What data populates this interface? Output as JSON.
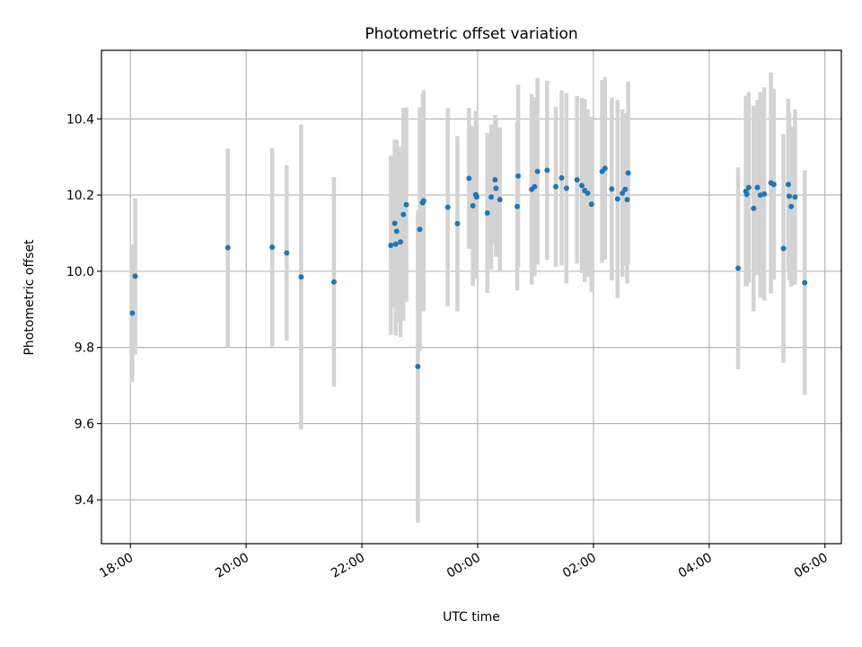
{
  "chart_data": {
    "type": "scatter",
    "title": "Photometric offset variation",
    "xlabel": "UTC time",
    "ylabel": "Photometric offset",
    "x_axis_type": "time",
    "x_range": [
      "17:30",
      "06:17"
    ],
    "ylim": [
      9.285,
      10.58
    ],
    "grid": true,
    "x_ticks": [
      "18:00",
      "20:00",
      "22:00",
      "00:00",
      "02:00",
      "04:00",
      "06:00"
    ],
    "y_ticks": [
      "9.4",
      "9.6",
      "9.8",
      "10.0",
      "10.2",
      "10.4"
    ],
    "marker_color": "#1f77b4",
    "errorbar_color": "#d3d3d3",
    "series": [
      {
        "points": [
          {
            "t": "18:02",
            "y": 9.89,
            "err": 0.18
          },
          {
            "t": "18:05",
            "y": 9.987,
            "err": 0.205
          },
          {
            "t": "19:41",
            "y": 10.062,
            "err": 0.26
          },
          {
            "t": "20:27",
            "y": 10.063,
            "err": 0.26
          },
          {
            "t": "20:42",
            "y": 10.048,
            "err": 0.23
          },
          {
            "t": "20:57",
            "y": 9.985,
            "err": 0.4
          },
          {
            "t": "21:31",
            "y": 9.972,
            "err": 0.275
          },
          {
            "t": "22:30",
            "y": 10.068,
            "err": 0.235
          },
          {
            "t": "22:34",
            "y": 10.126,
            "err": 0.22
          },
          {
            "t": "22:35",
            "y": 10.071,
            "err": 0.24
          },
          {
            "t": "22:36",
            "y": 10.105,
            "err": 0.24
          },
          {
            "t": "22:40",
            "y": 10.077,
            "err": 0.25
          },
          {
            "t": "22:43",
            "y": 10.149,
            "err": 0.28
          },
          {
            "t": "22:46",
            "y": 10.175,
            "err": 0.255
          },
          {
            "t": "22:58",
            "y": 9.75,
            "err": 0.41
          },
          {
            "t": "23:00",
            "y": 10.11,
            "err": 0.32
          },
          {
            "t": "23:03",
            "y": 10.18,
            "err": 0.285
          },
          {
            "t": "23:04",
            "y": 10.185,
            "err": 0.29
          },
          {
            "t": "23:29",
            "y": 10.168,
            "err": 0.26
          },
          {
            "t": "23:39",
            "y": 10.125,
            "err": 0.23
          },
          {
            "t": "23:51",
            "y": 10.244,
            "err": 0.185
          },
          {
            "t": "23:55",
            "y": 10.172,
            "err": 0.21
          },
          {
            "t": "23:58",
            "y": 10.201,
            "err": 0.22
          },
          {
            "t": "23:59",
            "y": 10.195,
            "err": 0.205
          },
          {
            "t": "00:10",
            "y": 10.153,
            "err": 0.21
          },
          {
            "t": "00:14",
            "y": 10.195,
            "err": 0.19
          },
          {
            "t": "00:18",
            "y": 10.24,
            "err": 0.17
          },
          {
            "t": "00:19",
            "y": 10.218,
            "err": 0.18
          },
          {
            "t": "00:23",
            "y": 10.188,
            "err": 0.19
          },
          {
            "t": "00:41",
            "y": 10.17,
            "err": 0.22
          },
          {
            "t": "00:42",
            "y": 10.25,
            "err": 0.24
          },
          {
            "t": "00:56",
            "y": 10.215,
            "err": 0.25
          },
          {
            "t": "00:59",
            "y": 10.222,
            "err": 0.235
          },
          {
            "t": "01:02",
            "y": 10.262,
            "err": 0.245
          },
          {
            "t": "01:12",
            "y": 10.265,
            "err": 0.235
          },
          {
            "t": "01:21",
            "y": 10.222,
            "err": 0.21
          },
          {
            "t": "01:27",
            "y": 10.245,
            "err": 0.23
          },
          {
            "t": "01:32",
            "y": 10.218,
            "err": 0.25
          },
          {
            "t": "01:43",
            "y": 10.24,
            "err": 0.22
          },
          {
            "t": "01:48",
            "y": 10.225,
            "err": 0.23
          },
          {
            "t": "01:51",
            "y": 10.212,
            "err": 0.24
          },
          {
            "t": "01:54",
            "y": 10.205,
            "err": 0.22
          },
          {
            "t": "01:58",
            "y": 10.176,
            "err": 0.23
          },
          {
            "t": "02:09",
            "y": 10.262,
            "err": 0.24
          },
          {
            "t": "02:12",
            "y": 10.27,
            "err": 0.24
          },
          {
            "t": "02:19",
            "y": 10.216,
            "err": 0.24
          },
          {
            "t": "02:25",
            "y": 10.19,
            "err": 0.26
          },
          {
            "t": "02:30",
            "y": 10.205,
            "err": 0.22
          },
          {
            "t": "02:33",
            "y": 10.215,
            "err": 0.2
          },
          {
            "t": "02:35",
            "y": 10.188,
            "err": 0.22
          },
          {
            "t": "02:36",
            "y": 10.258,
            "err": 0.24
          },
          {
            "t": "04:30",
            "y": 10.008,
            "err": 0.265
          },
          {
            "t": "04:38",
            "y": 10.21,
            "err": 0.25
          },
          {
            "t": "04:39",
            "y": 10.202,
            "err": 0.24
          },
          {
            "t": "04:41",
            "y": 10.22,
            "err": 0.25
          },
          {
            "t": "04:46",
            "y": 10.165,
            "err": 0.27
          },
          {
            "t": "04:50",
            "y": 10.22,
            "err": 0.23
          },
          {
            "t": "04:53",
            "y": 10.2,
            "err": 0.27
          },
          {
            "t": "04:57",
            "y": 10.203,
            "err": 0.28
          },
          {
            "t": "05:04",
            "y": 10.232,
            "err": 0.29
          },
          {
            "t": "05:07",
            "y": 10.228,
            "err": 0.25
          },
          {
            "t": "05:17",
            "y": 10.06,
            "err": 0.3
          },
          {
            "t": "05:22",
            "y": 10.228,
            "err": 0.225
          },
          {
            "t": "05:23",
            "y": 10.197,
            "err": 0.22
          },
          {
            "t": "05:25",
            "y": 10.17,
            "err": 0.21
          },
          {
            "t": "05:29",
            "y": 10.195,
            "err": 0.23
          },
          {
            "t": "05:39",
            "y": 9.97,
            "err": 0.295
          }
        ]
      }
    ]
  }
}
